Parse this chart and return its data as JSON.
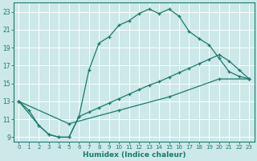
{
  "title": "",
  "xlabel": "Humidex (Indice chaleur)",
  "ylabel": "",
  "bg_color": "#cce8e8",
  "grid_color": "#ffffff",
  "line_color": "#1a7a6e",
  "xlim": [
    -0.5,
    23.5
  ],
  "ylim": [
    8.5,
    24.0
  ],
  "xticks": [
    0,
    1,
    2,
    3,
    4,
    5,
    6,
    7,
    8,
    9,
    10,
    11,
    12,
    13,
    14,
    15,
    16,
    17,
    18,
    19,
    20,
    21,
    22,
    23
  ],
  "yticks": [
    9,
    11,
    13,
    15,
    17,
    19,
    21,
    23
  ],
  "series1_x": [
    0,
    1,
    2,
    3,
    4,
    5,
    6,
    7,
    8,
    9,
    10,
    11,
    12,
    13,
    14,
    15,
    16,
    17,
    18,
    19,
    20,
    21,
    22,
    23
  ],
  "series1_y": [
    13,
    12,
    10.3,
    9.3,
    9.0,
    9.0,
    11.3,
    16.5,
    19.5,
    20.2,
    21.5,
    22.0,
    22.8,
    23.3,
    22.8,
    23.3,
    22.5,
    20.8,
    20.0,
    19.3,
    17.8,
    16.3,
    15.8,
    15.5
  ],
  "series2_x": [
    0,
    2,
    3,
    4,
    5,
    6,
    7,
    8,
    9,
    10,
    11,
    12,
    13,
    14,
    15,
    16,
    17,
    18,
    19,
    20,
    21,
    22,
    23
  ],
  "series2_y": [
    13,
    10.3,
    9.3,
    9.0,
    9.0,
    11.3,
    11.8,
    12.3,
    12.8,
    13.3,
    13.8,
    14.3,
    14.8,
    15.2,
    15.7,
    16.2,
    16.7,
    17.2,
    17.7,
    18.2,
    17.5,
    16.5,
    15.5
  ],
  "series3_x": [
    0,
    5,
    10,
    15,
    20,
    23
  ],
  "series3_y": [
    13,
    10.5,
    12.0,
    13.5,
    15.5,
    15.5
  ]
}
